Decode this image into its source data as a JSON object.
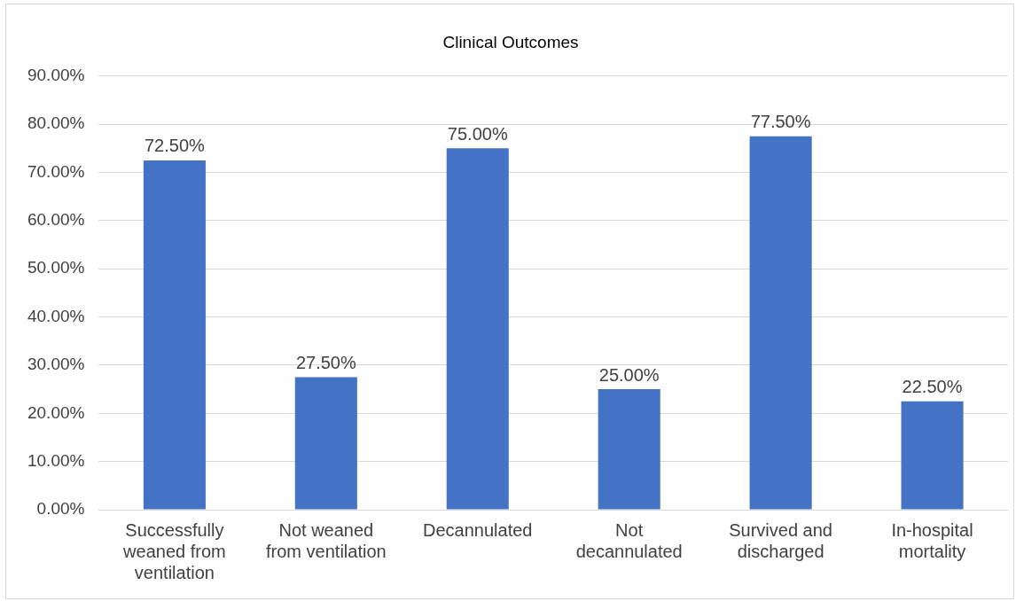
{
  "chart_data": {
    "type": "bar",
    "title": "Clinical Outcomes",
    "categories": [
      "Successfully weaned from ventilation",
      "Not weaned from ventilation",
      "Decannulated",
      "Not decannulated",
      "Survived and discharged",
      "In-hospital mortality"
    ],
    "values": [
      72.5,
      27.5,
      75,
      25,
      77.5,
      22.5
    ],
    "value_labels": [
      "72.50%",
      "27.50%",
      "75.00%",
      "25.00%",
      "77.50%",
      "22.50%"
    ],
    "color": "#4472c4",
    "ylim": [
      0,
      90
    ],
    "yticks": [
      {
        "value": 0,
        "label": "0.00%"
      },
      {
        "value": 10,
        "label": "10.00%"
      },
      {
        "value": 20,
        "label": "20.00%"
      },
      {
        "value": 30,
        "label": "30.00%"
      },
      {
        "value": 40,
        "label": "40.00%"
      },
      {
        "value": 50,
        "label": "50.00%"
      },
      {
        "value": 60,
        "label": "60.00%"
      },
      {
        "value": 70,
        "label": "70.00%"
      },
      {
        "value": 80,
        "label": "80.00%"
      },
      {
        "value": 90,
        "label": "90.00%"
      }
    ],
    "grid": "y",
    "legend": false
  }
}
